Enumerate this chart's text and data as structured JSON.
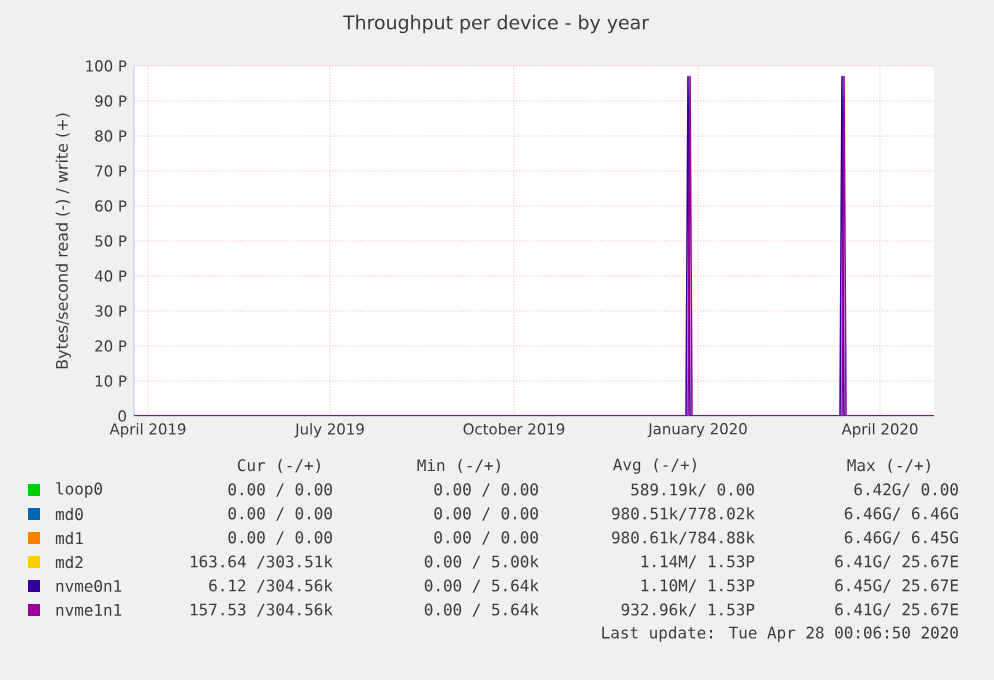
{
  "chart_data": {
    "type": "line",
    "title": "Throughput per device - by year",
    "ylabel": "Bytes/second read (-) / write (+)",
    "xlim": [
      "2019-03-25",
      "2020-04-28"
    ],
    "xticks": [
      {
        "value": "2019-04-01",
        "label": "April 2019"
      },
      {
        "value": "2019-07-01",
        "label": "July 2019"
      },
      {
        "value": "2019-10-01",
        "label": "October 2019"
      },
      {
        "value": "2020-01-01",
        "label": "January 2020"
      },
      {
        "value": "2020-04-01",
        "label": "April 2020"
      }
    ],
    "ylim": [
      0,
      100
    ],
    "yticks": [
      0,
      {
        "value": 10,
        "label": "10 P"
      },
      {
        "value": 20,
        "label": "20 P"
      },
      {
        "value": 30,
        "label": "30 P"
      },
      {
        "value": 40,
        "label": "40 P"
      },
      {
        "value": 50,
        "label": "50 P"
      },
      {
        "value": 60,
        "label": "60 P"
      },
      {
        "value": 70,
        "label": "70 P"
      },
      {
        "value": 80,
        "label": "80 P"
      },
      {
        "value": 90,
        "label": "90 P"
      },
      {
        "value": 100,
        "label": "100 P"
      }
    ],
    "grid": true,
    "legend": "bottom",
    "series": [
      {
        "name": "loop0",
        "color": "#00cc00"
      },
      {
        "name": "md0",
        "color": "#0066b3"
      },
      {
        "name": "md1",
        "color": "#ff8000"
      },
      {
        "name": "md2",
        "color": "#ffcc00"
      },
      {
        "name": "nvme0n1",
        "color": "#330099",
        "x": [
          "2019-03-25",
          "2019-12-26",
          "2019-12-27",
          "2019-12-28",
          "2020-03-12",
          "2020-03-13",
          "2020-03-14",
          "2020-04-28"
        ],
        "values": [
          0,
          0,
          97,
          0,
          0,
          97,
          0,
          0
        ]
      },
      {
        "name": "nvme1n1",
        "color": "#990099",
        "x": [
          "2019-03-25",
          "2019-12-27",
          "2019-12-28",
          "2019-12-29",
          "2020-03-13",
          "2020-03-14",
          "2020-03-15",
          "2020-04-28"
        ],
        "values": [
          0,
          0,
          97,
          0,
          0,
          97,
          0,
          0
        ]
      }
    ],
    "annotations": [
      "Cur (-/+)",
      "Min (-/+)",
      "Avg (-/+)",
      "Max (-/+)",
      "0.00 / 0.00",
      "0.00 / 0.00",
      "589.19k/ 0.00",
      "6.42G/ 0.00",
      "0.00 / 0.00",
      "0.00 / 0.00",
      "980.51k/778.02k",
      "6.46G/ 6.46G",
      "0.00 / 0.00",
      "0.00 / 0.00",
      "980.61k/784.88k",
      "6.46G/ 6.45G",
      "163.64 /303.51k",
      "0.00 / 5.00k",
      "1.14M/ 1.53P",
      "6.41G/ 25.67E",
      "6.12 /304.56k",
      "0.00 / 5.64k",
      "1.10M/ 1.53P",
      "6.45G/ 25.67E",
      "157.53 /304.56k",
      "0.00 / 5.64k",
      "932.96k/ 1.53P",
      "6.41G/ 25.67E",
      "Last update: Tue Apr 28 00:06:50 2020"
    ]
  }
}
